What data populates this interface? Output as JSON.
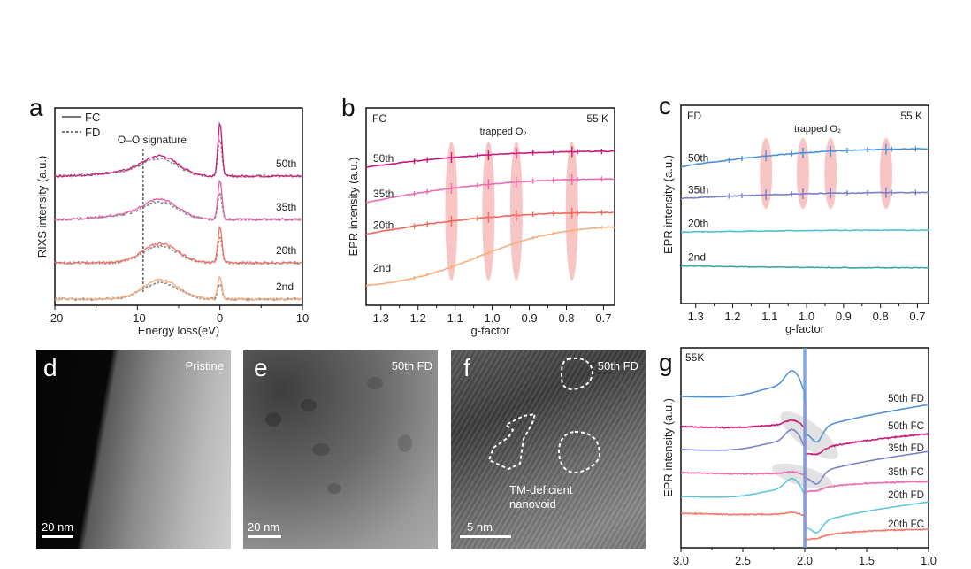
{
  "panels": {
    "a": {
      "letter": "a"
    },
    "b": {
      "letter": "b"
    },
    "c": {
      "letter": "c"
    },
    "d": {
      "letter": "d",
      "label": "Pristine",
      "scalebar": "20 nm"
    },
    "e": {
      "letter": "e",
      "label": "50th FD",
      "scalebar": "20 nm"
    },
    "f": {
      "letter": "f",
      "label": "50th FD",
      "scalebar": "5 nm",
      "annotation_line1": "TM-deficient",
      "annotation_line2": "nanovoid"
    },
    "g": {
      "letter": "g"
    }
  },
  "chart_data": [
    {
      "id": "a",
      "type": "line",
      "title": "",
      "xlabel": "Energy loss(eV)",
      "ylabel": "RIXS intensity (a.u.)",
      "xlim": [
        -20,
        10
      ],
      "xticks": [
        -20,
        -10,
        0,
        10
      ],
      "xtick_labels": [
        "-20",
        "-10",
        "0",
        "10"
      ],
      "legend": {
        "position": "top-left",
        "entries": [
          {
            "name": "FC",
            "style": "solid"
          },
          {
            "name": "FD",
            "style": "dashed"
          }
        ]
      },
      "annotation": {
        "text": "O–O signature",
        "x": -9.3
      },
      "series": [
        {
          "name": "50th",
          "offset": 3,
          "fc_color": "#c8197a",
          "fd_color": "#8c8c8c",
          "broad_peak": [
            -9.5,
            -5.5
          ],
          "elastic_peak": 0
        },
        {
          "name": "35th",
          "offset": 2,
          "fc_color": "#e060a8",
          "fd_color": "#8c8c8c",
          "broad_peak": [
            -9.5,
            -5.5
          ],
          "elastic_peak": 0
        },
        {
          "name": "20th",
          "offset": 1,
          "fc_color": "#f07060",
          "fd_color": "#8c8c8c",
          "broad_peak": [
            -9.3,
            -5.5
          ],
          "elastic_peak": 0
        },
        {
          "name": "2nd",
          "offset": 0,
          "fc_color": "#f4a877",
          "fd_color": "#8c8c8c",
          "broad_peak": [
            -9.3,
            -5.5
          ],
          "elastic_peak": 0
        }
      ]
    },
    {
      "id": "b",
      "type": "line",
      "xlabel": "g-factor",
      "ylabel": "EPR intensity (a.u.)",
      "xlim": [
        1.34,
        0.67
      ],
      "xticks": [
        1.3,
        1.2,
        1.1,
        1.0,
        0.9,
        0.8,
        0.7
      ],
      "xtick_labels": [
        "1.3",
        "1.2",
        "1.1",
        "1.0",
        "0.9",
        "0.8",
        "0.7"
      ],
      "corner_left": "FC",
      "corner_right": "55 K",
      "annotation": "trapped O₂",
      "highlight_g": [
        1.11,
        1.01,
        0.935,
        0.785
      ],
      "series": [
        {
          "name": "50th",
          "color": "#c8197a",
          "y_start": 0.7,
          "y_end": 0.78
        },
        {
          "name": "35th",
          "color": "#ea6bb0",
          "y_start": 0.52,
          "y_end": 0.64
        },
        {
          "name": "20th",
          "color": "#f06a5a",
          "y_start": 0.36,
          "y_end": 0.47
        },
        {
          "name": "2nd",
          "color": "#f7ae7c",
          "y_start": 0.08,
          "y_end": 0.41
        }
      ]
    },
    {
      "id": "c",
      "type": "line",
      "xlabel": "g-factor",
      "ylabel": "EPR intensity (a.u.)",
      "xlim": [
        1.34,
        0.67
      ],
      "xticks": [
        1.3,
        1.2,
        1.1,
        1.0,
        0.9,
        0.8,
        0.7
      ],
      "xtick_labels": [
        "1.3",
        "1.2",
        "1.1",
        "1.0",
        "0.9",
        "0.8",
        "0.7"
      ],
      "corner_left": "FD",
      "corner_right": "55 K",
      "annotation": "trapped O₂",
      "highlight_g": [
        1.11,
        1.01,
        0.935,
        0.785
      ],
      "series": [
        {
          "name": "50th",
          "color": "#4a8fd6",
          "y_start": 0.69,
          "y_end": 0.78,
          "markers": true
        },
        {
          "name": "35th",
          "color": "#7b7fc8",
          "y_start": 0.53,
          "y_end": 0.56,
          "markers": true
        },
        {
          "name": "20th",
          "color": "#4ec0d6",
          "y_start": 0.36,
          "y_end": 0.37,
          "markers": false
        },
        {
          "name": "2nd",
          "color": "#3aa6a6",
          "y_start": 0.19,
          "y_end": 0.18,
          "markers": false
        }
      ]
    },
    {
      "id": "g",
      "type": "line",
      "xlabel": "",
      "ylabel": "EPR intensity (a.u.)",
      "xlim": [
        3.0,
        1.0
      ],
      "xticks": [
        3.0,
        2.5,
        2.0,
        1.5,
        1.0
      ],
      "xtick_labels": [
        "3.0",
        "2.5",
        "2.0",
        "1.5",
        "1.0"
      ],
      "corner_left": "55K",
      "series": [
        {
          "name": "50th FD",
          "color": "#4a8fd6",
          "offset": 5
        },
        {
          "name": "50th FC",
          "color": "#c8197a",
          "offset": 4
        },
        {
          "name": "35th FD",
          "color": "#7b7fc8",
          "offset": 3
        },
        {
          "name": "35th FC",
          "color": "#ea6bb0",
          "offset": 2
        },
        {
          "name": "20th FD",
          "color": "#5bc4dc",
          "offset": 1
        },
        {
          "name": "20th FC",
          "color": "#f07a6a",
          "offset": 0
        }
      ]
    }
  ]
}
